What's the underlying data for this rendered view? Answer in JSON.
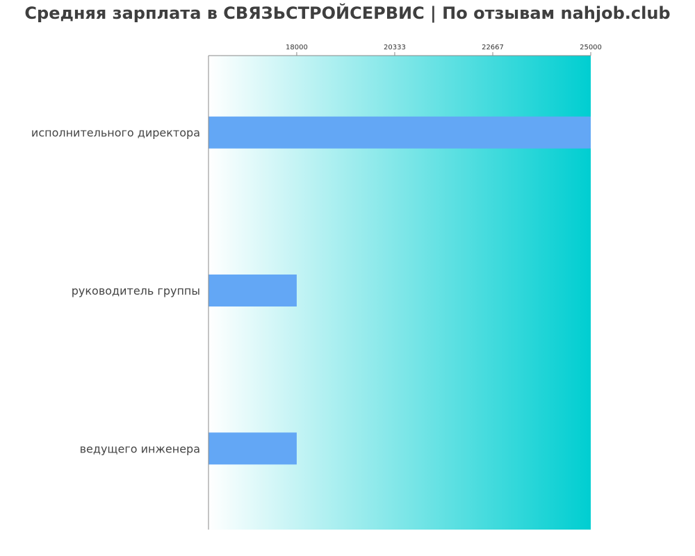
{
  "chart_data": {
    "type": "bar",
    "orientation": "horizontal",
    "title": "Средняя зарплата в СВЯЗЬСТРОЙСЕРВИС | По отзывам nahjob.club",
    "categories": [
      "исполнительного директора",
      "руководитель группы",
      "ведущего инженера"
    ],
    "values": [
      25000,
      18000,
      18000
    ],
    "xlim": [
      15900,
      25000
    ],
    "x_ticks": [
      18000,
      20333,
      22667,
      25000
    ],
    "tick_labels": [
      "18000",
      "20333",
      "22667",
      "25000"
    ],
    "axis_position": "top",
    "grid": false,
    "legend": "none",
    "colors": {
      "bar": "#63a7f5",
      "background_start": "#ffffff",
      "background_end": "#00ced1",
      "axis": "#888888",
      "title": "#3f3f3f",
      "label": "#444444"
    }
  }
}
